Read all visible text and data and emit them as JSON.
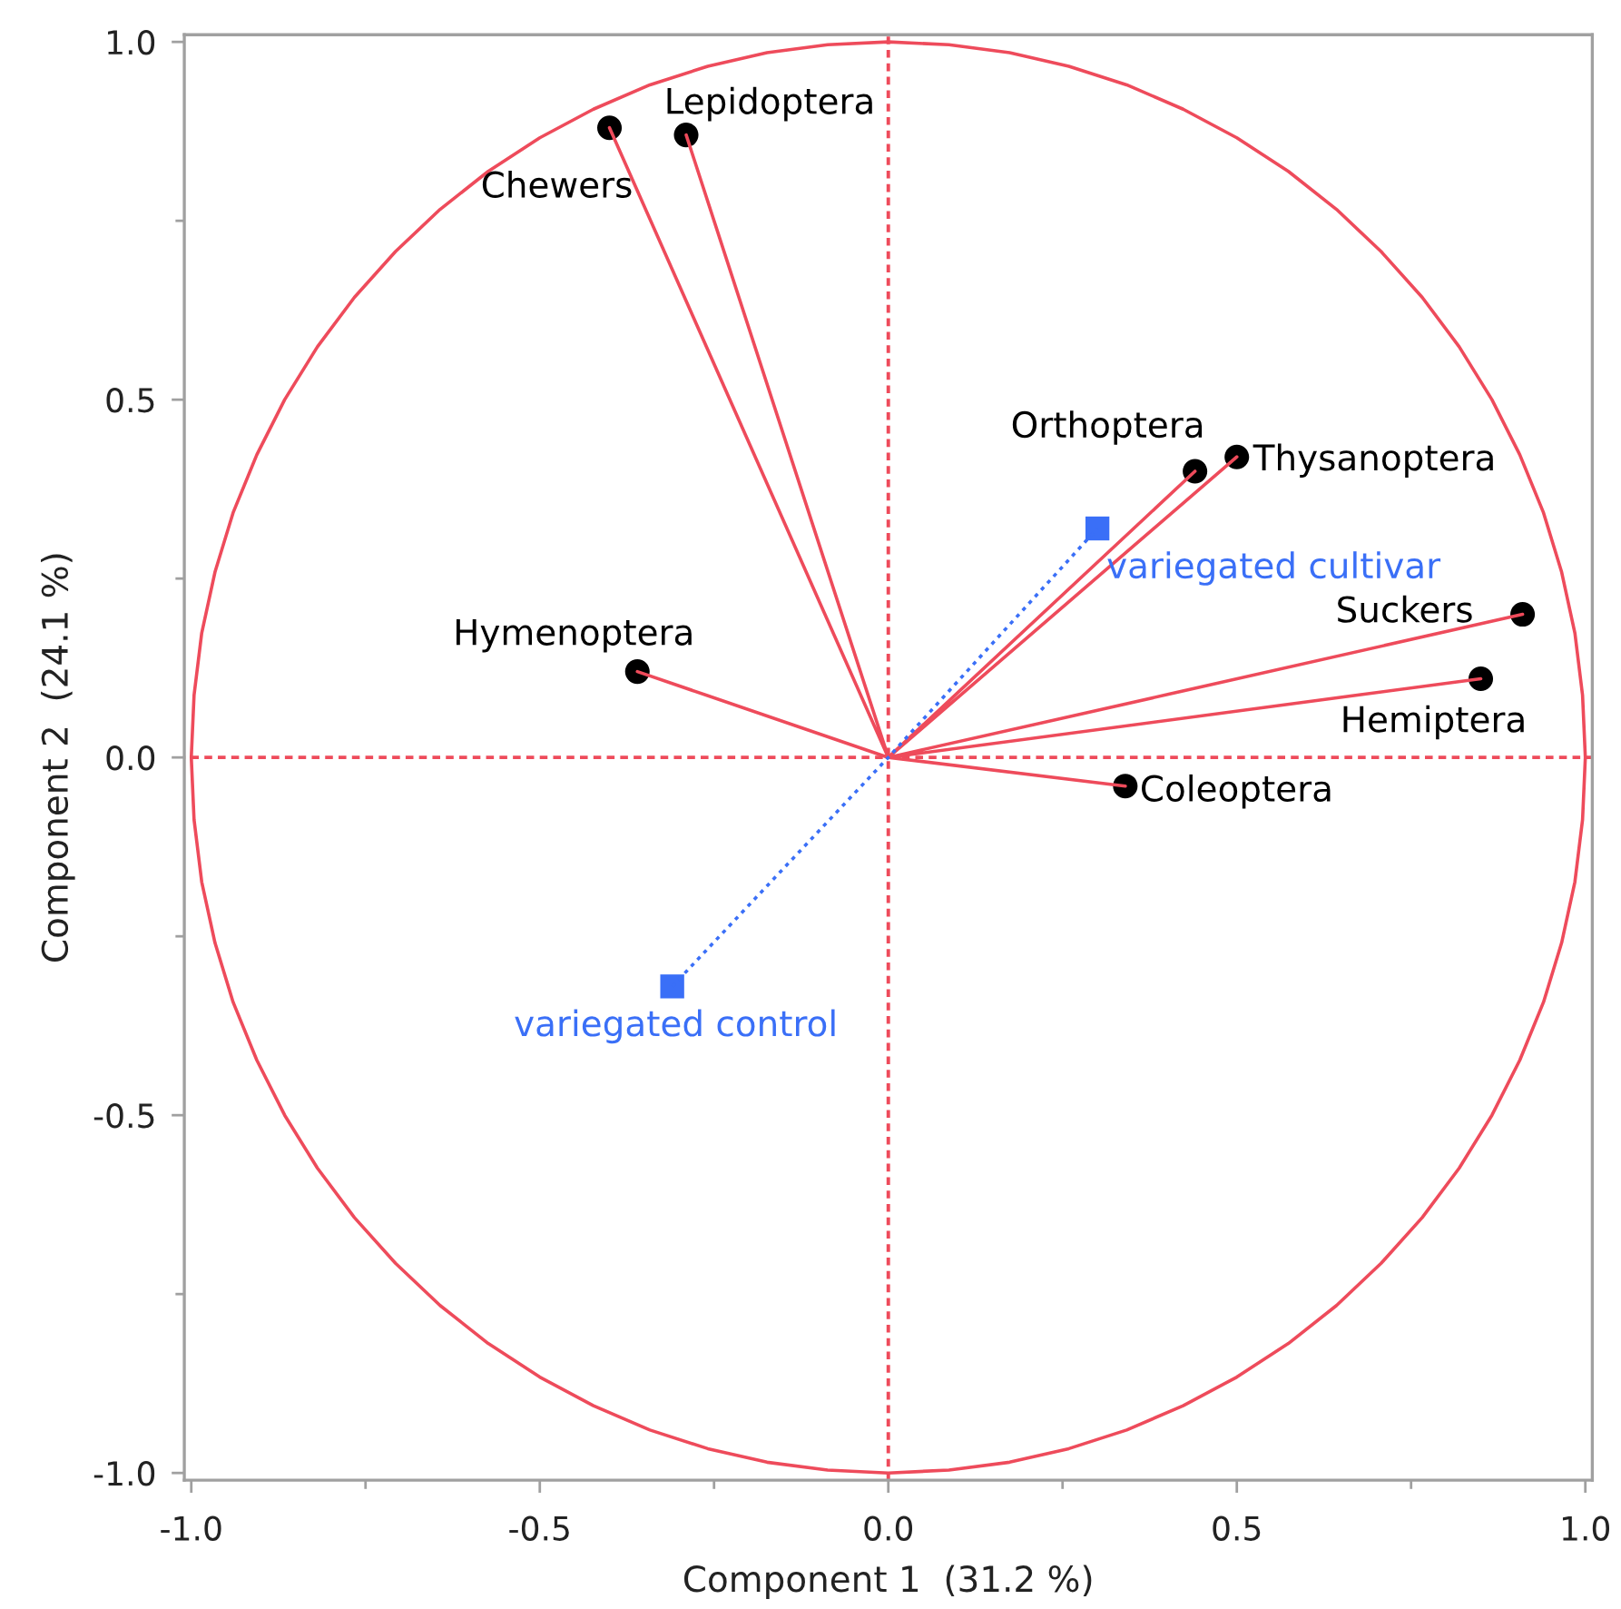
{
  "chart_data": {
    "type": "scatter",
    "xlabel": "Component 1  (31.2 %)",
    "ylabel": "Component 2  (24.1 %)",
    "xlim": [
      -1.01,
      1.01
    ],
    "ylim": [
      -1.01,
      1.01
    ],
    "xticks": [
      {
        "value": -1.0,
        "label": "-1.0"
      },
      {
        "value": -0.75,
        "label": null
      },
      {
        "value": -0.5,
        "label": "-0.5"
      },
      {
        "value": -0.25,
        "label": null
      },
      {
        "value": 0.0,
        "label": "0.0"
      },
      {
        "value": 0.25,
        "label": null
      },
      {
        "value": 0.5,
        "label": "0.5"
      },
      {
        "value": 0.75,
        "label": null
      },
      {
        "value": 1.0,
        "label": "1.0"
      }
    ],
    "yticks": [
      {
        "value": -1.0,
        "label": "-1.0"
      },
      {
        "value": -0.75,
        "label": null
      },
      {
        "value": -0.5,
        "label": "-0.5"
      },
      {
        "value": -0.25,
        "label": null
      },
      {
        "value": 0.0,
        "label": "0.0"
      },
      {
        "value": 0.25,
        "label": null
      },
      {
        "value": 0.5,
        "label": "0.5"
      },
      {
        "value": 0.75,
        "label": null
      },
      {
        "value": 1.0,
        "label": "1.0"
      }
    ],
    "grid": false,
    "legend": false,
    "ref_lines": [
      {
        "axis": "x",
        "value": 0,
        "color": "#ee4b5b",
        "line_style": "dashed"
      },
      {
        "axis": "y",
        "value": 0,
        "color": "#ee4b5b",
        "line_style": "dashed"
      }
    ],
    "series": [
      {
        "type": "line",
        "color": "#ee4b5b",
        "line_style": "solid",
        "x": [
          1.0,
          0.996,
          0.985,
          0.966,
          0.94,
          0.906,
          0.866,
          0.819,
          0.766,
          0.707,
          0.643,
          0.574,
          0.5,
          0.423,
          0.342,
          0.259,
          0.174,
          0.087,
          0.0,
          -0.087,
          -0.174,
          -0.259,
          -0.342,
          -0.423,
          -0.5,
          -0.574,
          -0.643,
          -0.707,
          -0.766,
          -0.819,
          -0.866,
          -0.906,
          -0.94,
          -0.966,
          -0.985,
          -0.996,
          -1.0,
          -0.996,
          -0.985,
          -0.966,
          -0.94,
          -0.906,
          -0.866,
          -0.819,
          -0.766,
          -0.707,
          -0.643,
          -0.574,
          -0.5,
          -0.423,
          -0.342,
          -0.259,
          -0.174,
          -0.087,
          0.0,
          0.087,
          0.174,
          0.259,
          0.342,
          0.423,
          0.5,
          0.574,
          0.643,
          0.707,
          0.766,
          0.819,
          0.866,
          0.906,
          0.94,
          0.966,
          0.985,
          0.996,
          1.0,
          0.996,
          null,
          0,
          -0.29,
          0,
          -0.4,
          0,
          0.44,
          0,
          0.5,
          0,
          0.91,
          0,
          -0.36,
          0,
          0.85,
          0,
          0.34
        ],
        "values": [
          0.0,
          0.087,
          0.174,
          0.259,
          0.342,
          0.423,
          0.5,
          0.574,
          0.643,
          0.707,
          0.766,
          0.819,
          0.866,
          0.906,
          0.94,
          0.966,
          0.985,
          0.996,
          1.0,
          0.996,
          0.985,
          0.966,
          0.94,
          0.906,
          0.866,
          0.819,
          0.766,
          0.707,
          0.643,
          0.574,
          0.5,
          0.423,
          0.342,
          0.259,
          0.174,
          0.087,
          0.0,
          -0.087,
          -0.174,
          -0.259,
          -0.342,
          -0.423,
          -0.5,
          -0.574,
          -0.643,
          -0.707,
          -0.766,
          -0.819,
          -0.866,
          -0.906,
          -0.94,
          -0.966,
          -0.985,
          -0.996,
          -1.0,
          -0.996,
          -0.985,
          -0.966,
          -0.94,
          -0.906,
          -0.866,
          -0.819,
          -0.766,
          -0.707,
          -0.643,
          -0.574,
          -0.5,
          -0.423,
          -0.342,
          -0.259,
          -0.174,
          -0.087,
          0.0,
          0.087,
          null,
          0,
          0.87,
          0,
          0.88,
          0,
          0.4,
          0,
          0.42,
          0,
          0.2,
          0,
          0.12,
          0,
          0.11,
          0,
          -0.04
        ]
      },
      {
        "type": "line",
        "color": "#3a6ff7",
        "line_style": "dotted",
        "x": [
          -0.31,
          0,
          0.3
        ],
        "values": [
          -0.32,
          0,
          0.32
        ]
      },
      {
        "color": "#000000",
        "marker": "circle",
        "x": [
          -0.29,
          -0.4,
          0.44,
          0.5,
          0.91,
          -0.36,
          0.85,
          0.34
        ],
        "values": [
          0.87,
          0.88,
          0.4,
          0.42,
          0.2,
          0.12,
          0.11,
          -0.04
        ]
      },
      {
        "color": "#3a6ff7",
        "marker": "square",
        "x": [
          0.3,
          -0.31
        ],
        "values": [
          0.32,
          -0.32
        ]
      }
    ],
    "annotations": [
      {
        "text": "Lepidoptera",
        "x": -0.29,
        "y": 0.87
      },
      {
        "text": "Chewers",
        "x": -0.4,
        "y": 0.88
      },
      {
        "text": "Orthoptera",
        "x": 0.44,
        "y": 0.4
      },
      {
        "text": "Thysanoptera",
        "x": 0.5,
        "y": 0.42
      },
      {
        "text": "variegated cultivar",
        "x": 0.3,
        "y": 0.32
      },
      {
        "text": "Suckers",
        "x": 0.91,
        "y": 0.2
      },
      {
        "text": "Hymenoptera",
        "x": -0.36,
        "y": 0.12
      },
      {
        "text": "Hemiptera",
        "x": 0.85,
        "y": 0.11
      },
      {
        "text": "Coleoptera",
        "x": 0.34,
        "y": -0.04
      },
      {
        "text": "variegated control",
        "x": -0.31,
        "y": -0.32
      }
    ]
  }
}
